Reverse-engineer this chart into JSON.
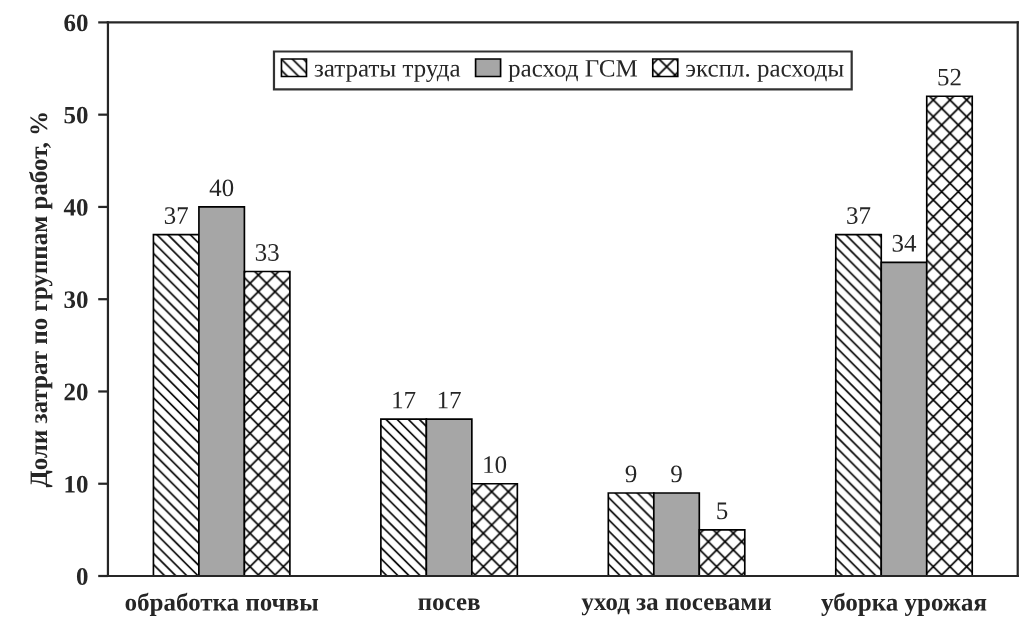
{
  "chart_data": {
    "type": "bar",
    "ylabel": "Доли затрат по группам работ, %",
    "categories": [
      "обработка почвы",
      "посев",
      "уход за посевами",
      "уборка урожая"
    ],
    "series": [
      {
        "name": "затраты труда",
        "color": "#000000",
        "values": [
          37,
          17,
          9,
          37
        ]
      },
      {
        "name": "расход ГСМ",
        "color": "#a6a6a6",
        "values": [
          40,
          17,
          9,
          34
        ]
      },
      {
        "name": "экспл. расходы",
        "color": "#000000",
        "values": [
          33,
          10,
          5,
          52
        ]
      }
    ],
    "ylim": [
      0,
      60
    ],
    "yticks": [
      0,
      10,
      20,
      30,
      40,
      50,
      60
    ],
    "data_labels": true,
    "legend": "top",
    "grid": false
  }
}
